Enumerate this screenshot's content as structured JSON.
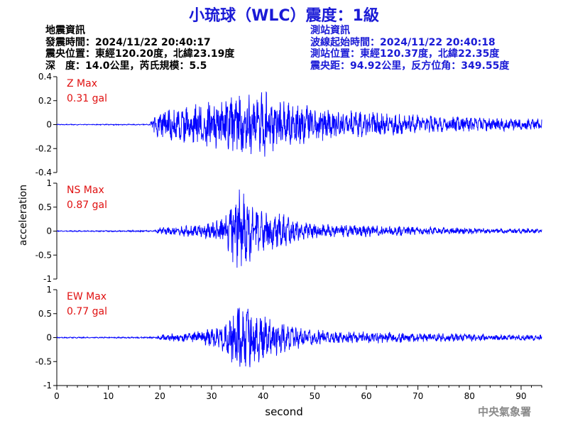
{
  "title": "小琉球（WLC）震度：1級",
  "quake_info": {
    "heading": "地震資訊",
    "origin_time": "發震時間：2024/11/22 20:40:17",
    "epicenter": "震央位置：東經120.20度，北緯23.19度",
    "depth_mag": "深　度：14.0公里，芮氏規模：5.5"
  },
  "station_info": {
    "heading": "測站資訊",
    "wave_start": "波線起始時間：2024/11/22 20:40:18",
    "location": "測站位置：東經120.37度，北緯22.35度",
    "distance": "震央距：94.92公里，反方位角：349.55度"
  },
  "credit": "中央氣象署",
  "colors": {
    "title": "#1a1ad6",
    "trace": "#0000ff",
    "max_label": "#e01010"
  },
  "chart_data": {
    "type": "line",
    "xlabel": "second",
    "ylabel": "acceleration",
    "xlim": [
      0,
      94
    ],
    "xticks": [
      0,
      10,
      20,
      30,
      40,
      50,
      60,
      70,
      80,
      90
    ],
    "grid": false,
    "panels": [
      {
        "name": "Z",
        "max_label": "Z Max",
        "max_value": "0.31 gal",
        "ylim": [
          -0.4,
          0.4
        ],
        "yticks": [
          -0.4,
          -0.2,
          0,
          0.2,
          0.4
        ],
        "ytick_labels": [
          "-0.4",
          "-0.2",
          "0",
          "0.2",
          "0.4"
        ],
        "envelope": [
          [
            0,
            0.003
          ],
          [
            18,
            0.004
          ],
          [
            19,
            0.09
          ],
          [
            22,
            0.12
          ],
          [
            26,
            0.14
          ],
          [
            30,
            0.17
          ],
          [
            34,
            0.2
          ],
          [
            36,
            0.24
          ],
          [
            38,
            0.22
          ],
          [
            40,
            0.26
          ],
          [
            43,
            0.18
          ],
          [
            47,
            0.16
          ],
          [
            55,
            0.11
          ],
          [
            65,
            0.08
          ],
          [
            75,
            0.06
          ],
          [
            85,
            0.05
          ],
          [
            94,
            0.04
          ]
        ]
      },
      {
        "name": "NS",
        "max_label": "NS Max",
        "max_value": "0.87 gal",
        "ylim": [
          -1,
          1
        ],
        "yticks": [
          -1,
          -0.5,
          0,
          0.5,
          1
        ],
        "ytick_labels": [
          "-1",
          "-0.5",
          "0",
          "0.5",
          "1"
        ],
        "envelope": [
          [
            0,
            0.01
          ],
          [
            19,
            0.015
          ],
          [
            20,
            0.07
          ],
          [
            25,
            0.1
          ],
          [
            30,
            0.15
          ],
          [
            33,
            0.3
          ],
          [
            35,
            0.8
          ],
          [
            37,
            0.6
          ],
          [
            40,
            0.35
          ],
          [
            44,
            0.3
          ],
          [
            48,
            0.16
          ],
          [
            55,
            0.12
          ],
          [
            65,
            0.09
          ],
          [
            75,
            0.07
          ],
          [
            85,
            0.05
          ],
          [
            94,
            0.04
          ]
        ]
      },
      {
        "name": "EW",
        "max_label": "EW Max",
        "max_value": "0.77 gal",
        "ylim": [
          -1,
          1
        ],
        "yticks": [
          -1,
          -0.5,
          0,
          0.5,
          1
        ],
        "ytick_labels": [
          "-1",
          "-0.5",
          "0",
          "0.5",
          "1"
        ],
        "envelope": [
          [
            0,
            0.01
          ],
          [
            19,
            0.015
          ],
          [
            20,
            0.06
          ],
          [
            25,
            0.09
          ],
          [
            30,
            0.16
          ],
          [
            33,
            0.3
          ],
          [
            35,
            0.72
          ],
          [
            37,
            0.55
          ],
          [
            40,
            0.4
          ],
          [
            44,
            0.3
          ],
          [
            48,
            0.15
          ],
          [
            55,
            0.12
          ],
          [
            65,
            0.1
          ],
          [
            75,
            0.08
          ],
          [
            85,
            0.06
          ],
          [
            94,
            0.05
          ]
        ]
      }
    ]
  }
}
